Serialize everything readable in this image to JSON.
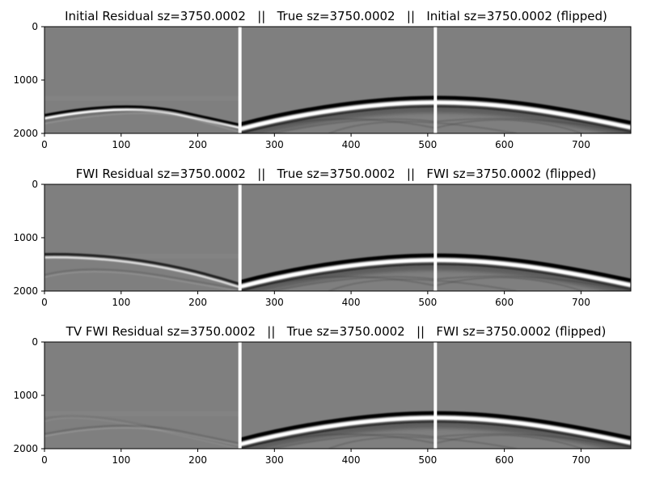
{
  "chart_data": [
    {
      "type": "heatmap",
      "title": "Initial Residual sz=3750.0002   ||   True sz=3750.0002   ||   Initial sz=3750.0002 (flipped)",
      "xlabel": "",
      "ylabel": "",
      "xlim": [
        0,
        765
      ],
      "ylim": [
        2000,
        0
      ],
      "xticks": [
        0,
        100,
        200,
        300,
        400,
        500,
        600,
        700
      ],
      "yticks": [
        0,
        1000,
        2000
      ],
      "colormap": "gray",
      "separators_x": [
        255,
        510
      ],
      "panels": [
        "Initial Residual",
        "True",
        "Initial (flipped)"
      ],
      "residual_events": [
        {
          "apex_x": 105,
          "apex_y": 1520,
          "end_x": 255,
          "end_y": 1870,
          "polarity": "dark-over-bright",
          "strength": 1.0
        },
        {
          "apex_x": 130,
          "apex_y": 1560,
          "end_x": 255,
          "end_y": 1930,
          "polarity": "faint",
          "strength": 0.3
        }
      ],
      "right_event_apex_y": 1360
    },
    {
      "type": "heatmap",
      "title": "FWI Residual sz=3750.0002   ||   True sz=3750.0002   ||   FWI sz=3750.0002 (flipped)",
      "xlabel": "",
      "ylabel": "",
      "xlim": [
        0,
        765
      ],
      "ylim": [
        2000,
        0
      ],
      "xticks": [
        0,
        100,
        200,
        300,
        400,
        500,
        600,
        700
      ],
      "yticks": [
        0,
        1000,
        2000
      ],
      "colormap": "gray",
      "separators_x": [
        255,
        510
      ],
      "panels": [
        "FWI Residual",
        "True",
        "FWI (flipped)"
      ],
      "residual_events": [
        {
          "apex_x": 0,
          "apex_y": 1340,
          "end_x": 255,
          "end_y": 1900,
          "polarity": "dark-over-bright",
          "strength": 0.75
        },
        {
          "apex_x": 60,
          "apex_y": 1600,
          "end_x": 255,
          "end_y": 1960,
          "polarity": "faint",
          "strength": 0.3
        }
      ],
      "right_event_apex_y": 1360
    },
    {
      "type": "heatmap",
      "title": "TV FWI Residual sz=3750.0002   ||   True sz=3750.0002   ||   FWI sz=3750.0002 (flipped)",
      "xlabel": "",
      "ylabel": "",
      "xlim": [
        0,
        765
      ],
      "ylim": [
        2000,
        0
      ],
      "xticks": [
        0,
        100,
        200,
        300,
        400,
        500,
        600,
        700
      ],
      "yticks": [
        0,
        1000,
        2000
      ],
      "colormap": "gray",
      "separators_x": [
        255,
        510
      ],
      "panels": [
        "TV FWI Residual",
        "True",
        "FWI (flipped)"
      ],
      "residual_events": [
        {
          "apex_x": 100,
          "apex_y": 1560,
          "end_x": 255,
          "end_y": 1900,
          "polarity": "faint",
          "strength": 0.35
        },
        {
          "apex_x": 40,
          "apex_y": 1380,
          "end_x": 255,
          "end_y": 1960,
          "polarity": "faint",
          "strength": 0.15
        }
      ],
      "right_event_apex_y": 1360
    }
  ]
}
